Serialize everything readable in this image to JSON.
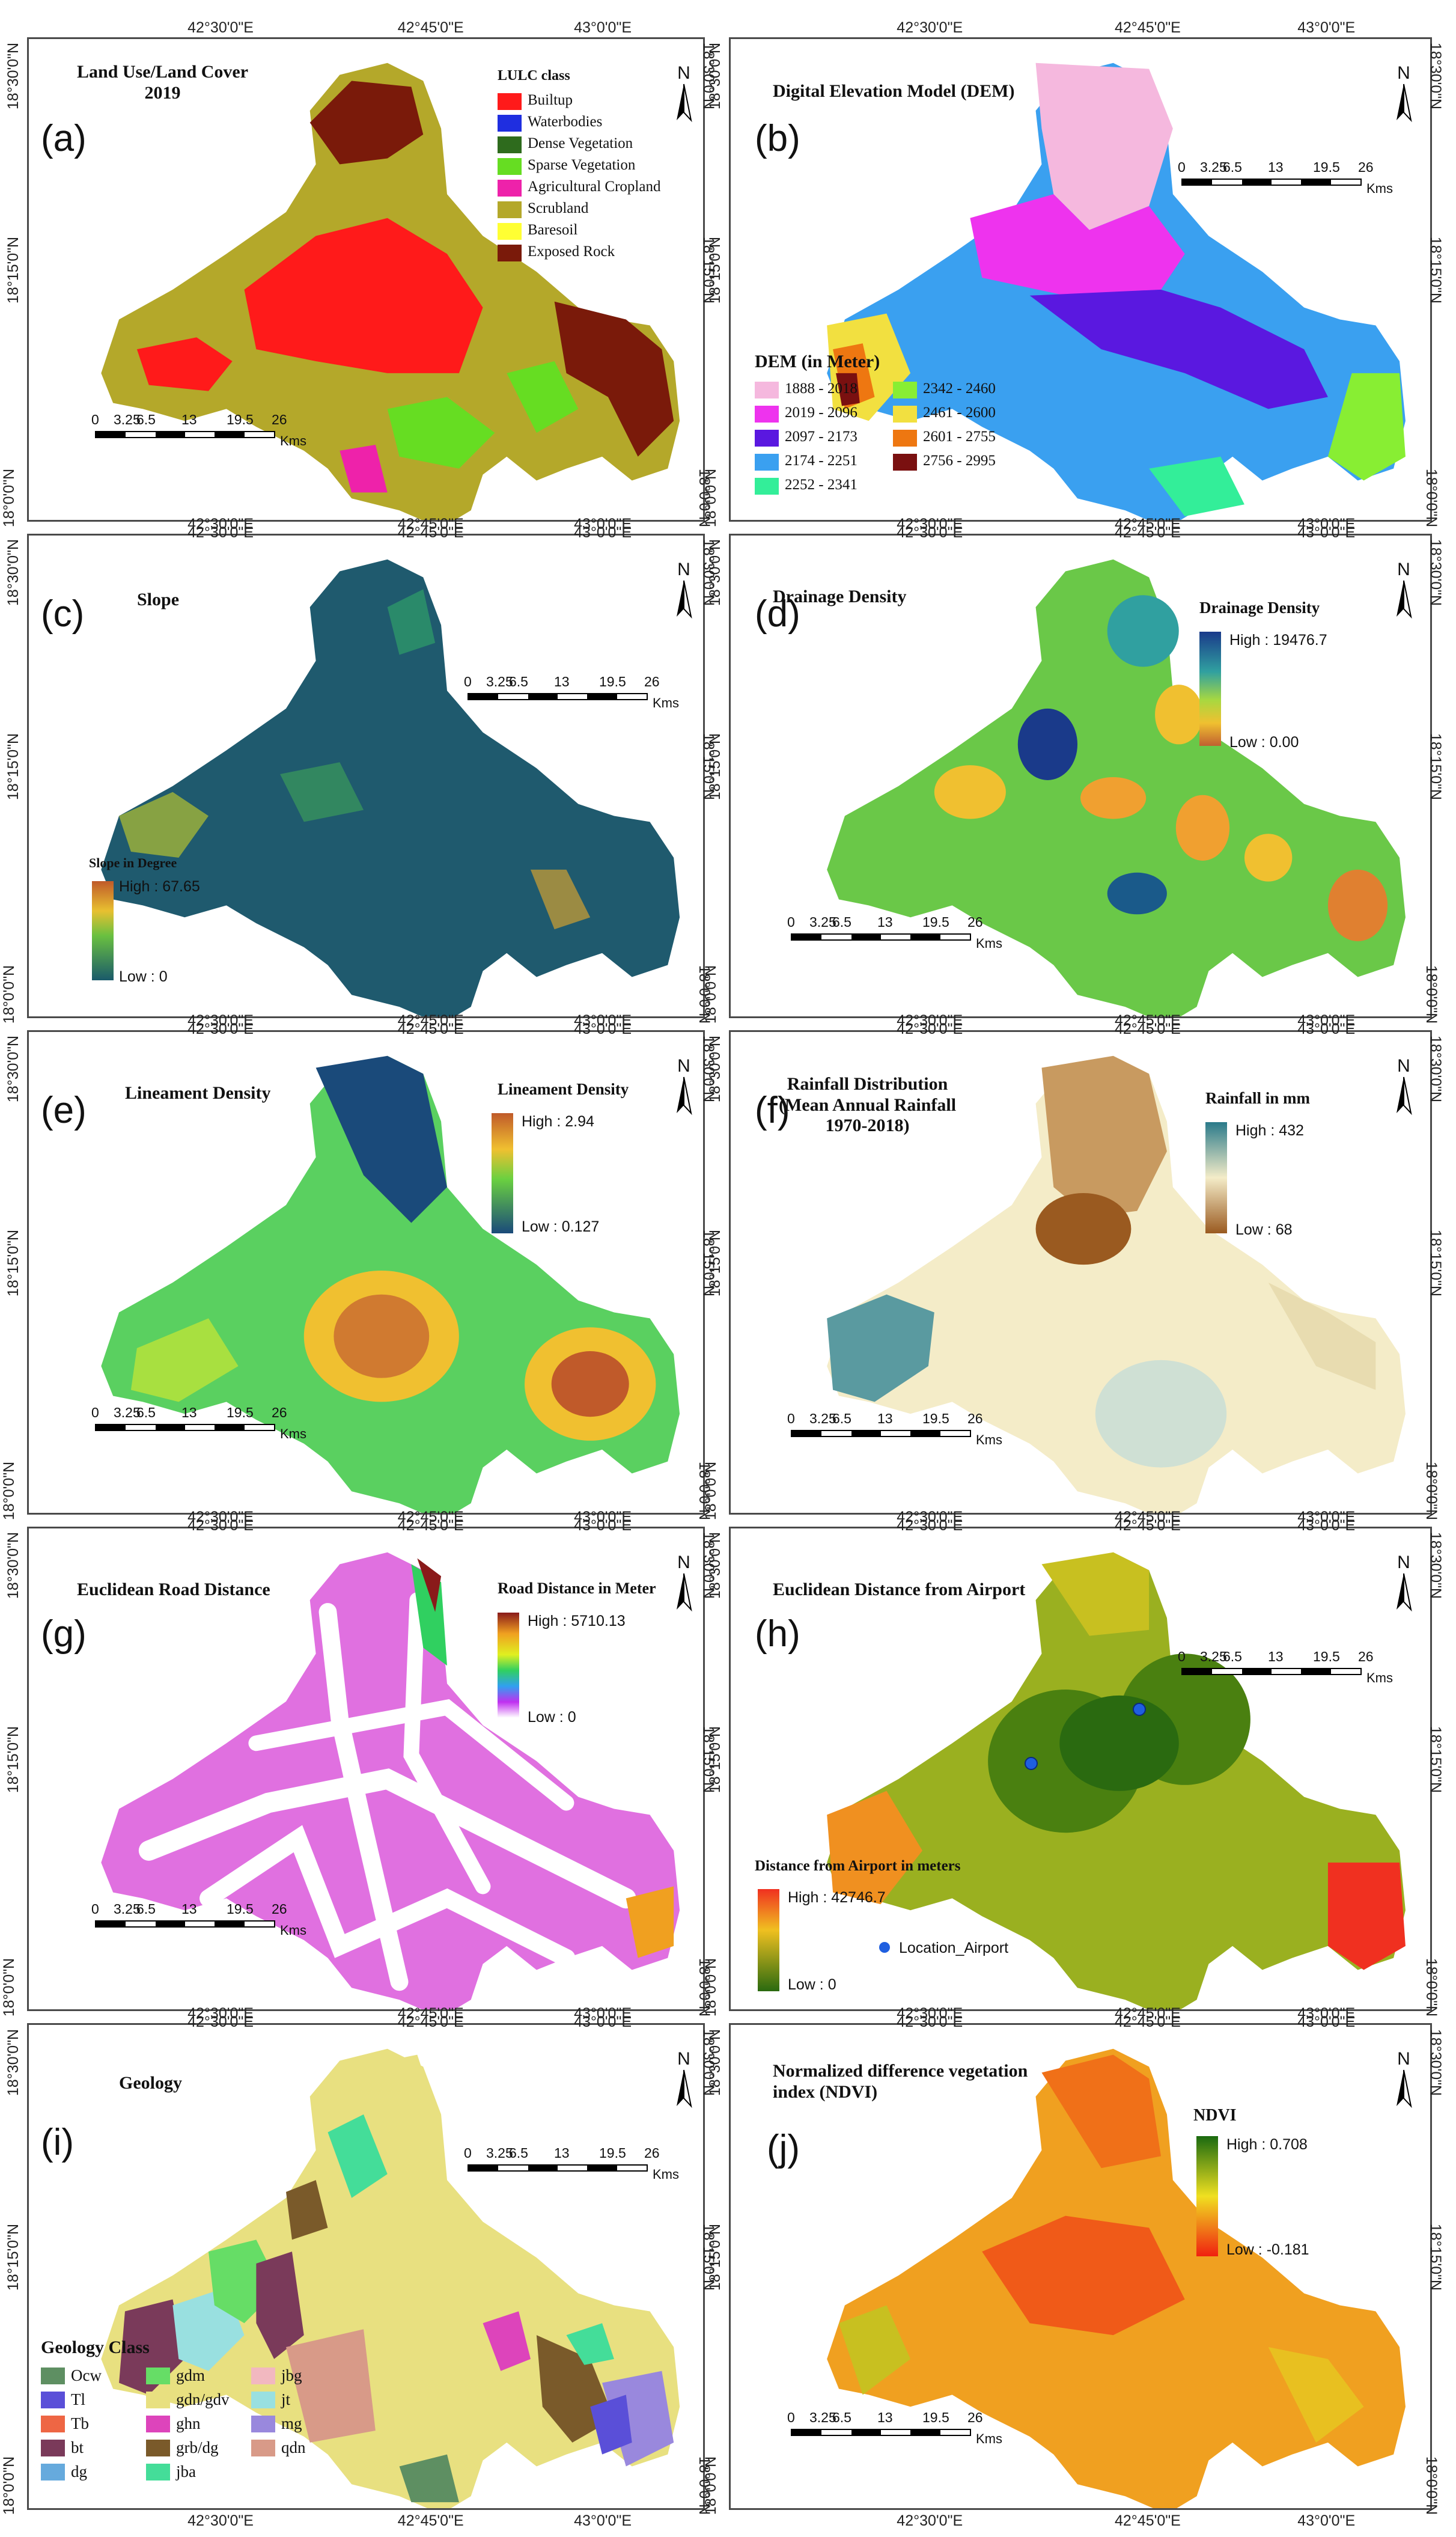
{
  "coords": {
    "lon": [
      "42°30'0\"E",
      "42°45'0\"E",
      "43°0'0\"E"
    ],
    "lat": [
      "18°30'0\"N",
      "18°15'0\"N",
      "18°0'0\"N"
    ]
  },
  "scale": {
    "ticks": [
      "0",
      "3.25",
      "6.5",
      "13",
      "19.5",
      "26"
    ],
    "unit": "Kms"
  },
  "north_label": "N",
  "panels": {
    "a": {
      "letter": "(a)",
      "title_line1": "Land Use/Land Cover",
      "title_line2": "2019",
      "legend_title": "LULC class",
      "classes": [
        {
          "label": "Builtup",
          "color": "#ff1a1a"
        },
        {
          "label": "Waterbodies",
          "color": "#1f2ee0"
        },
        {
          "label": "Dense Vegetation",
          "color": "#2e6b1d"
        },
        {
          "label": "Sparse Vegetation",
          "color": "#66dd22"
        },
        {
          "label": "Agricultural Cropland",
          "color": "#ee22aa"
        },
        {
          "label": "Scrubland",
          "color": "#b4a82a"
        },
        {
          "label": "Baresoil",
          "color": "#ffff33"
        },
        {
          "label": "Exposed Rock",
          "color": "#7a1a0a"
        }
      ]
    },
    "b": {
      "letter": "(b)",
      "title": "Digital Elevation Model (DEM)",
      "legend_title": "DEM (in Meter)",
      "classes": [
        {
          "label": "1888 - 2018",
          "color": "#f5b8de"
        },
        {
          "label": "2019 - 2096",
          "color": "#ee33ee"
        },
        {
          "label": "2097 - 2173",
          "color": "#5a18e0"
        },
        {
          "label": "2174 - 2251",
          "color": "#3aa0f0"
        },
        {
          "label": "2252 - 2341",
          "color": "#33ee99"
        },
        {
          "label": "2342 - 2460",
          "color": "#88ee33"
        },
        {
          "label": "2461 - 2600",
          "color": "#f2e040"
        },
        {
          "label": "2601 - 2755",
          "color": "#ee7711"
        },
        {
          "label": "2756 - 2995",
          "color": "#7a1010"
        }
      ]
    },
    "c": {
      "letter": "(c)",
      "title": "Slope",
      "legend_title": "Slope in Degree",
      "high": "High : 67.65",
      "low": "Low : 0"
    },
    "d": {
      "letter": "(d)",
      "title": "Drainage Density",
      "legend_title": "Drainage Density",
      "high": "High : 19476.7",
      "low": "Low : 0.00"
    },
    "e": {
      "letter": "(e)",
      "title": "Lineament Density",
      "legend_title": "Lineament Density",
      "high": "High : 2.94",
      "low": "Low : 0.127"
    },
    "f": {
      "letter": "(f)",
      "title_line1": "Rainfall Distribution",
      "title_line2": "(Mean Annual Rainfall",
      "title_line3": "1970-2018)",
      "legend_title": "Rainfall in mm",
      "high": "High : 432",
      "low": "Low : 68"
    },
    "g": {
      "letter": "(g)",
      "title": "Euclidean Road Distance",
      "legend_title": "Road Distance in Meter",
      "high": "High : 5710.13",
      "low": "Low : 0"
    },
    "h": {
      "letter": "(h)",
      "title": "Euclidean Distance from Airport",
      "legend_title": "Distance from Airport in meters",
      "high": "High : 42746.7",
      "low": "Low : 0",
      "point_label": "Location_Airport"
    },
    "i": {
      "letter": "(i)",
      "title": "Geology",
      "legend_title": "Geology Class",
      "classes": [
        {
          "label": "Ocw",
          "color": "#5e8f62"
        },
        {
          "label": "Tl",
          "color": "#5a4fd8"
        },
        {
          "label": "Tb",
          "color": "#ee6644"
        },
        {
          "label": "bt",
          "color": "#7a3a5a"
        },
        {
          "label": "dg",
          "color": "#66aadd"
        },
        {
          "label": "gdm",
          "color": "#66dd66"
        },
        {
          "label": "gdn/gdv",
          "color": "#e8e080"
        },
        {
          "label": "ghn",
          "color": "#dd44bb"
        },
        {
          "label": "grb/dg",
          "color": "#7a5a2a"
        },
        {
          "label": "jba",
          "color": "#44dd99"
        },
        {
          "label": "jbg",
          "color": "#f2b8c0"
        },
        {
          "label": "jt",
          "color": "#99e0e0"
        },
        {
          "label": "mg",
          "color": "#9988dd"
        },
        {
          "label": "qdn",
          "color": "#d89a88"
        }
      ]
    },
    "j": {
      "letter": "(j)",
      "title_line1": "Normalized difference vegetation",
      "title_line2": "index (NDVI)",
      "legend_title": "NDVI",
      "high": "High : 0.708",
      "low": "Low : -0.181"
    }
  }
}
